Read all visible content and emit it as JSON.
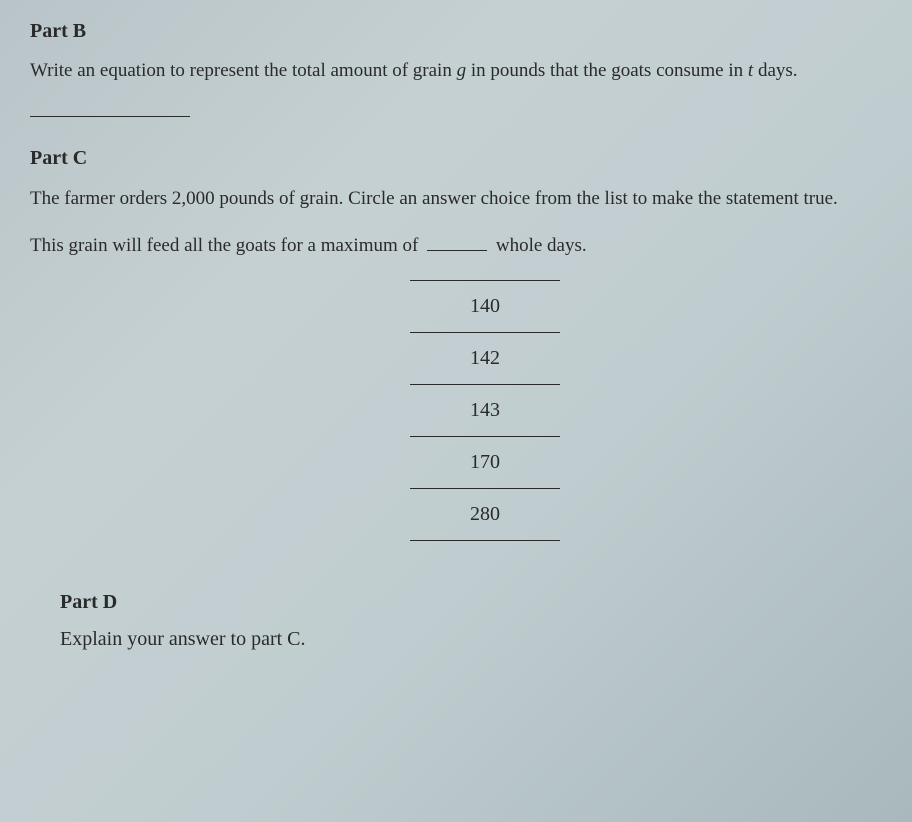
{
  "partB": {
    "heading": "Part B",
    "prompt_prefix": "Write an equation to represent the total amount of grain ",
    "var_g": "g",
    "prompt_mid": " in pounds that the goats consume in ",
    "var_t": "t",
    "prompt_suffix": " days."
  },
  "partC": {
    "heading": "Part C",
    "paragraph1": "The farmer orders 2,000 pounds of grain. Circle an answer choice from the list to make the statement true.",
    "sentence_prefix": "This grain will feed all the goats for a maximum of ",
    "sentence_suffix": " whole days.",
    "choices": [
      "140",
      "142",
      "143",
      "170",
      "280"
    ]
  },
  "partD": {
    "heading": "Part D",
    "prompt": "Explain your answer to part C."
  },
  "style": {
    "background_gradient": [
      "#b8c4c8",
      "#c5d0d2",
      "#c0cdd0",
      "#a8b8bc"
    ],
    "text_color": "#2a2a2a",
    "font_family": "Georgia, Times New Roman, serif",
    "heading_fontsize": 20,
    "body_fontsize": 19,
    "choice_fontsize": 20,
    "line_color": "#2a2a2a"
  }
}
